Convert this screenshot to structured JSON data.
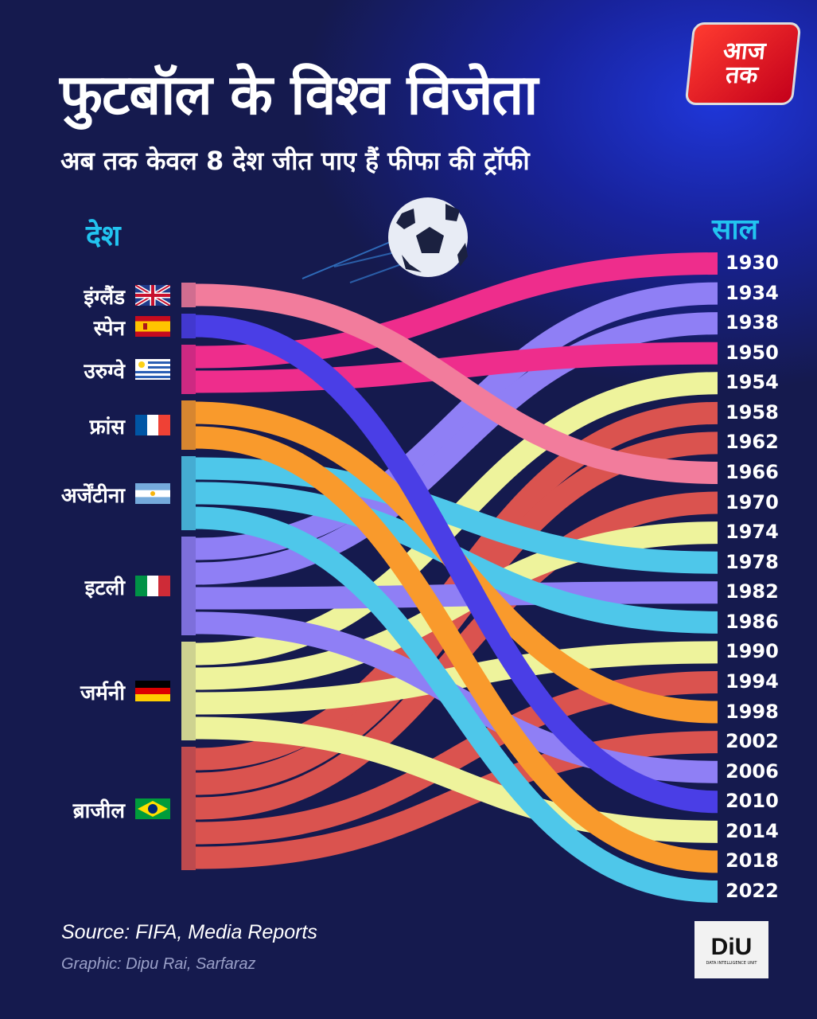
{
  "header": {
    "title": "फुटबॉल के विश्व विजेता",
    "subtitle": "अब तक केवल 8 देश जीत पाए हैं फीफा की ट्रॉफी",
    "country_header": "देश",
    "year_header": "साल"
  },
  "brand": {
    "logo_text_1": "आज",
    "logo_text_2": "तक",
    "diu_logo": "DiU",
    "diu_tagline": "DATA INTELLIGENCE UNIT"
  },
  "footer": {
    "source": "Source: FIFA, Media Reports",
    "credit": "Graphic: Dipu Rai, Sarfaraz"
  },
  "chart_data": {
    "type": "sankey",
    "title": "फुटबॉल के विश्व विजेता",
    "countries": [
      {
        "label": "इंग्लैंड",
        "flag": "uk-flag-icon",
        "color": "#f27c9c"
      },
      {
        "label": "स्पेन",
        "flag": "spain-flag-icon",
        "color": "#4a3ee6"
      },
      {
        "label": "उरुग्वे",
        "flag": "uruguay-flag-icon",
        "color": "#ee2d8c"
      },
      {
        "label": "फ्रांस",
        "flag": "france-flag-icon",
        "color": "#f99a2c"
      },
      {
        "label": "अर्जेंटीना",
        "flag": "argentina-flag-icon",
        "color": "#4ec7ea"
      },
      {
        "label": "इटली",
        "flag": "italy-flag-icon",
        "color": "#8f7ff5"
      },
      {
        "label": "जर्मनी",
        "flag": "germany-flag-icon",
        "color": "#eef39c"
      },
      {
        "label": "ब्राजील",
        "flag": "brazil-flag-icon",
        "color": "#da534f"
      }
    ],
    "years": [
      "1930",
      "1934",
      "1938",
      "1950",
      "1954",
      "1958",
      "1962",
      "1966",
      "1970",
      "1974",
      "1978",
      "1982",
      "1986",
      "1990",
      "1994",
      "1998",
      "2002",
      "2006",
      "2010",
      "2014",
      "2018",
      "2022"
    ],
    "links": [
      {
        "year": "1930",
        "country": "उरुग्वे"
      },
      {
        "year": "1934",
        "country": "इटली"
      },
      {
        "year": "1938",
        "country": "इटली"
      },
      {
        "year": "1950",
        "country": "उरुग्वे"
      },
      {
        "year": "1954",
        "country": "जर्मनी"
      },
      {
        "year": "1958",
        "country": "ब्राजील"
      },
      {
        "year": "1962",
        "country": "ब्राजील"
      },
      {
        "year": "1966",
        "country": "इंग्लैंड"
      },
      {
        "year": "1970",
        "country": "ब्राजील"
      },
      {
        "year": "1974",
        "country": "जर्मनी"
      },
      {
        "year": "1978",
        "country": "अर्जेंटीना"
      },
      {
        "year": "1982",
        "country": "इटली"
      },
      {
        "year": "1986",
        "country": "अर्जेंटीना"
      },
      {
        "year": "1990",
        "country": "जर्मनी"
      },
      {
        "year": "1994",
        "country": "ब्राजील"
      },
      {
        "year": "1998",
        "country": "फ्रांस"
      },
      {
        "year": "2002",
        "country": "ब्राजील"
      },
      {
        "year": "2006",
        "country": "इटली"
      },
      {
        "year": "2010",
        "country": "स्पेन"
      },
      {
        "year": "2014",
        "country": "जर्मनी"
      },
      {
        "year": "2018",
        "country": "फ्रांस"
      },
      {
        "year": "2022",
        "country": "अर्जेंटीना"
      }
    ]
  }
}
